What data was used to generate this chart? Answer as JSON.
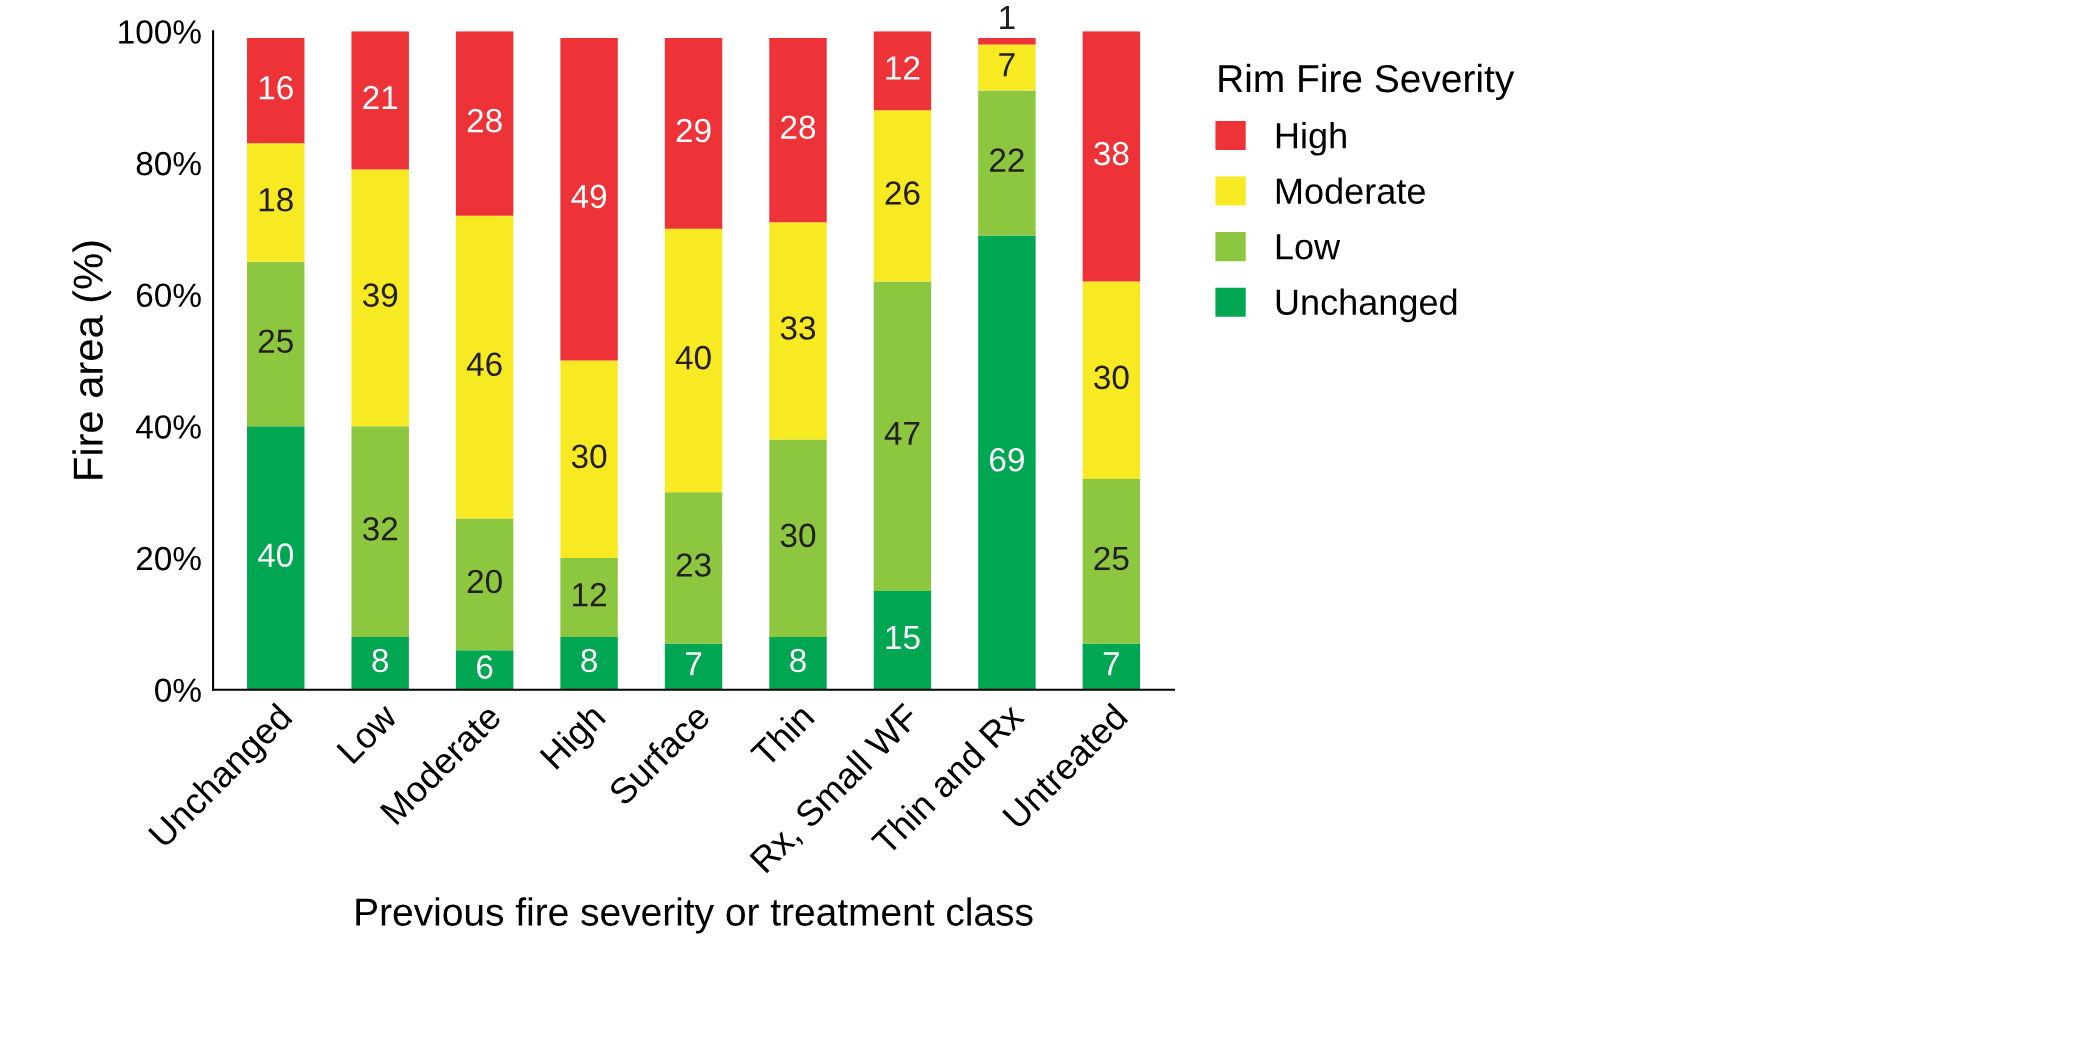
{
  "chart_data": {
    "type": "bar",
    "stacked": true,
    "xlabel": "Previous fire severity or treatment class",
    "ylabel": "Fire area (%)",
    "legend_title": "Rim Fire Severity",
    "legend": "right",
    "data_labels": true,
    "grid": false,
    "categories": [
      "Unchanged",
      "Low",
      "Moderate",
      "High",
      "Surface",
      "Thin",
      "Rx, Small WF",
      "Thin and Rx",
      "Untreated"
    ],
    "ylim": [
      0,
      100
    ],
    "yticks": [
      {
        "value": 0,
        "label": "0%"
      },
      {
        "value": 20,
        "label": "20%"
      },
      {
        "value": 40,
        "label": "40%"
      },
      {
        "value": 60,
        "label": "60%"
      },
      {
        "value": 80,
        "label": "80%"
      },
      {
        "value": 100,
        "label": "100%"
      }
    ],
    "series": [
      {
        "name": "Unchanged",
        "color": "#00a651",
        "values": [
          40,
          8,
          6,
          8,
          7,
          8,
          15,
          69,
          7
        ]
      },
      {
        "name": "Low",
        "color": "#8dc63f",
        "values": [
          25,
          32,
          20,
          12,
          23,
          30,
          47,
          22,
          25
        ]
      },
      {
        "name": "Moderate",
        "color": "#f7ea22",
        "values": [
          18,
          39,
          46,
          30,
          40,
          33,
          26,
          7,
          30
        ]
      },
      {
        "name": "High",
        "color": "#ee3338",
        "values": [
          16,
          21,
          28,
          49,
          29,
          28,
          12,
          1,
          38
        ]
      }
    ]
  }
}
